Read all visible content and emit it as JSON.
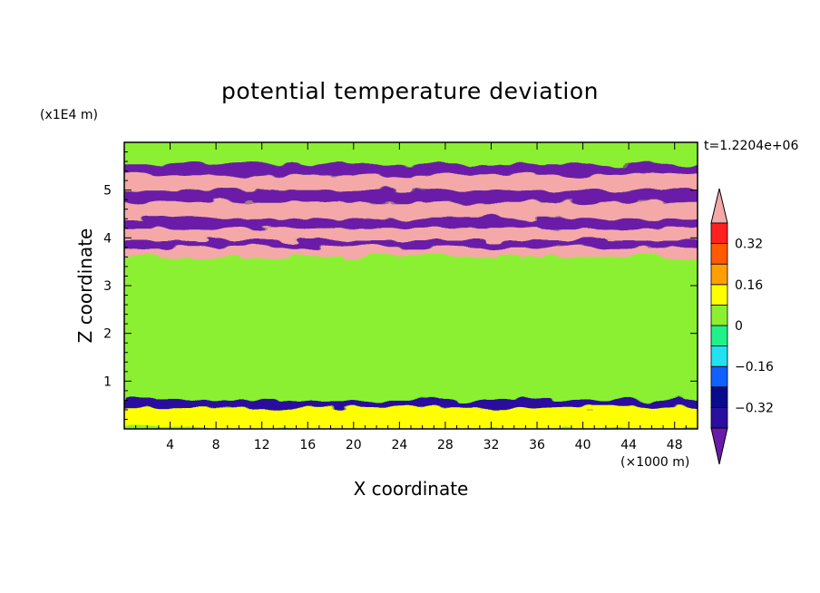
{
  "chart_data": {
    "type": "heatmap",
    "title": "potential temperature deviation",
    "xlabel": "X coordinate",
    "ylabel": "Z coordinate",
    "x_unit_label": "(×1000 m)",
    "y_unit_label": "(x1E4 m)",
    "time_label": "t=1.2204e+06",
    "xlim": [
      0,
      50
    ],
    "ylim": [
      0,
      6
    ],
    "x_ticks": [
      "4",
      "8",
      "12",
      "16",
      "20",
      "24",
      "28",
      "32",
      "36",
      "40",
      "44",
      "48"
    ],
    "y_ticks": [
      "1",
      "2",
      "3",
      "4",
      "5"
    ],
    "colorbar": {
      "levels": [
        -0.4,
        -0.32,
        -0.24,
        -0.16,
        -0.08,
        0,
        0.08,
        0.16,
        0.24,
        0.32,
        0.4
      ],
      "colors": [
        "#6a1aa8",
        "#2a0f9e",
        "#0a0a8c",
        "#1060ff",
        "#22e0f0",
        "#22f088",
        "#8cf030",
        "#ffff00",
        "#ffa000",
        "#ff5a00",
        "#ff2020",
        "#f5a8a8"
      ],
      "tick_labels": [
        "0.32",
        "0.16",
        "0",
        "−0.16",
        "−0.32"
      ]
    },
    "bands": [
      {
        "z": [
          5.55,
          5.9
        ],
        "value": 0.0
      },
      {
        "z": [
          5.3,
          5.55
        ],
        "value": -0.42
      },
      {
        "z": [
          5.0,
          5.3
        ],
        "value": 0.42
      },
      {
        "z": [
          4.75,
          5.0
        ],
        "value": -0.42
      },
      {
        "z": [
          4.4,
          4.75
        ],
        "value": 0.42
      },
      {
        "z": [
          4.2,
          4.4
        ],
        "value": -0.42
      },
      {
        "z": [
          3.95,
          4.2
        ],
        "value": 0.42
      },
      {
        "z": [
          3.8,
          3.95
        ],
        "value": -0.42
      },
      {
        "z": [
          3.6,
          3.8
        ],
        "value": 0.42
      },
      {
        "z": [
          0.6,
          3.6
        ],
        "value": 0.04
      },
      {
        "z": [
          0.45,
          0.6
        ],
        "value": -0.35
      },
      {
        "z": [
          0.0,
          0.45
        ],
        "value": 0.08
      }
    ]
  }
}
